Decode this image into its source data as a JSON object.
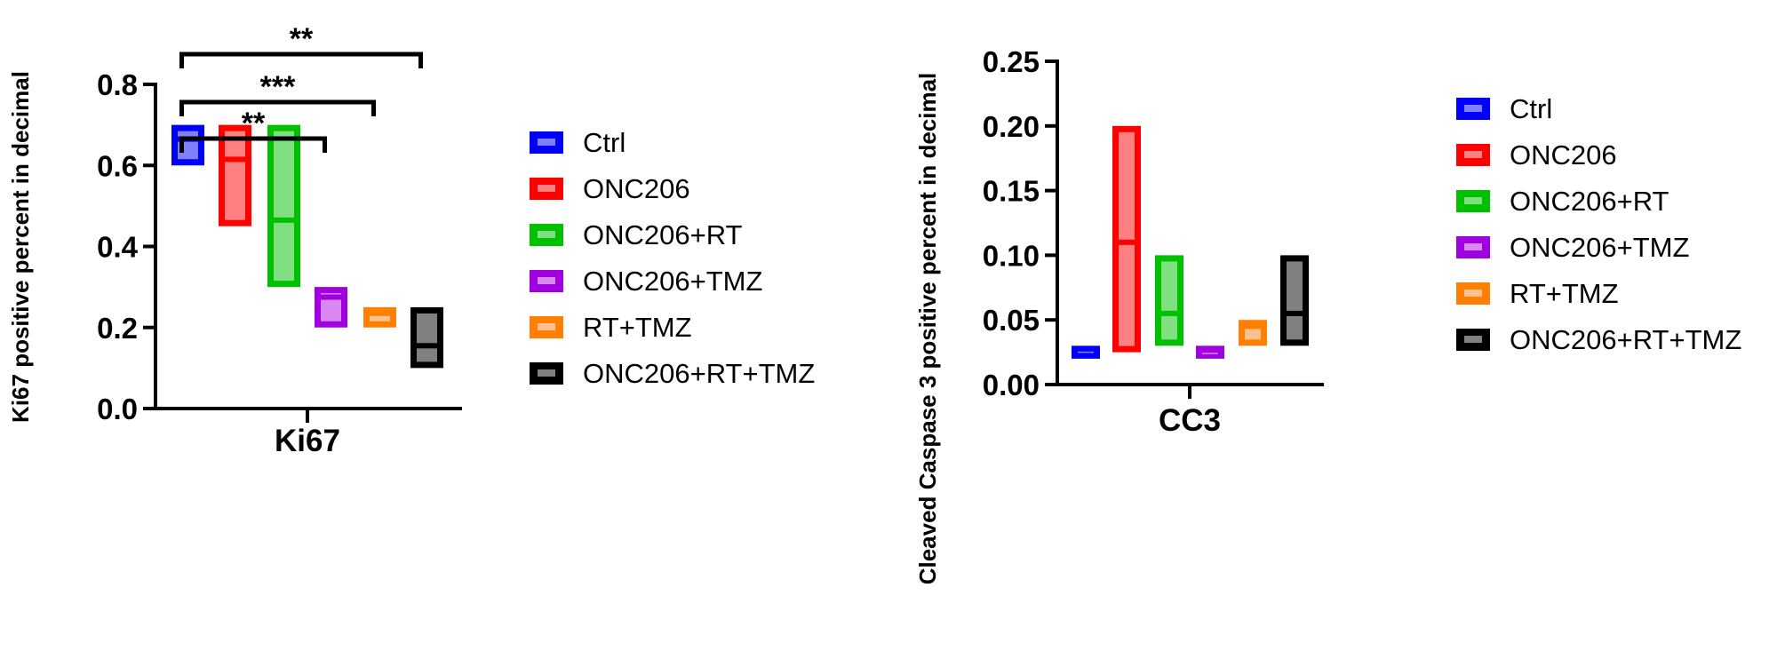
{
  "chart_data": [
    {
      "type": "bar",
      "subtype": "floating-bar-min-max-with-median",
      "title": "",
      "xlabel": "Ki67",
      "ylabel": "Ki67 positive percent in decimal",
      "ylim": [
        0,
        0.8
      ],
      "yticks": [
        "0.0",
        "0.2",
        "0.4",
        "0.6",
        "0.8"
      ],
      "categories": [
        "Ki67"
      ],
      "series": [
        {
          "name": "Ctrl",
          "color": "#0000ff",
          "fill": "#8080ff",
          "min": 0.6,
          "max": 0.7,
          "median": 0.665
        },
        {
          "name": "ONC206",
          "color": "#ff0000",
          "fill": "#ff8080",
          "min": 0.45,
          "max": 0.7,
          "median": 0.615
        },
        {
          "name": "ONC206+RT",
          "color": "#00c000",
          "fill": "#80e080",
          "min": 0.3,
          "max": 0.7,
          "median": 0.465
        },
        {
          "name": "ONC206+TMZ",
          "color": "#a000e0",
          "fill": "#d888f0",
          "min": 0.2,
          "max": 0.3,
          "median": 0.275
        },
        {
          "name": "RT+TMZ",
          "color": "#ff8000",
          "fill": "#ffc090",
          "min": 0.2,
          "max": 0.25,
          "median": 0.235
        },
        {
          "name": "ONC206+RT+TMZ",
          "color": "#000000",
          "fill": "#808080",
          "min": 0.1,
          "max": 0.25,
          "median": 0.155
        }
      ],
      "annotations": [
        {
          "from": "Ctrl",
          "to": "ONC206+TMZ",
          "label": "**"
        },
        {
          "from": "Ctrl",
          "to": "RT+TMZ",
          "label": "***"
        },
        {
          "from": "Ctrl",
          "to": "ONC206+RT+TMZ",
          "label": "**"
        }
      ],
      "legend_position": "right",
      "grid": false
    },
    {
      "type": "bar",
      "subtype": "floating-bar-min-max-with-median",
      "title": "",
      "xlabel": "CC3",
      "ylabel": "Cleaved Caspase 3 positive percent in decimal",
      "ylim": [
        0,
        0.25
      ],
      "yticks": [
        "0.00",
        "0.05",
        "0.10",
        "0.15",
        "0.20",
        "0.25"
      ],
      "categories": [
        "CC3"
      ],
      "series": [
        {
          "name": "Ctrl",
          "color": "#0000ff",
          "fill": "#8080ff",
          "min": 0.02,
          "max": 0.03,
          "median": 0.025
        },
        {
          "name": "ONC206",
          "color": "#ff0000",
          "fill": "#ff8080",
          "min": 0.025,
          "max": 0.2,
          "median": 0.11
        },
        {
          "name": "ONC206+RT",
          "color": "#00c000",
          "fill": "#80e080",
          "min": 0.03,
          "max": 0.1,
          "median": 0.055
        },
        {
          "name": "ONC206+TMZ",
          "color": "#a000e0",
          "fill": "#d888f0",
          "min": 0.02,
          "max": 0.03,
          "median": 0.024
        },
        {
          "name": "RT+TMZ",
          "color": "#ff8000",
          "fill": "#ffc090",
          "min": 0.03,
          "max": 0.05,
          "median": 0.045
        },
        {
          "name": "ONC206+RT+TMZ",
          "color": "#000000",
          "fill": "#808080",
          "min": 0.03,
          "max": 0.1,
          "median": 0.055
        }
      ],
      "annotations": [],
      "legend_position": "right",
      "grid": false
    }
  ]
}
